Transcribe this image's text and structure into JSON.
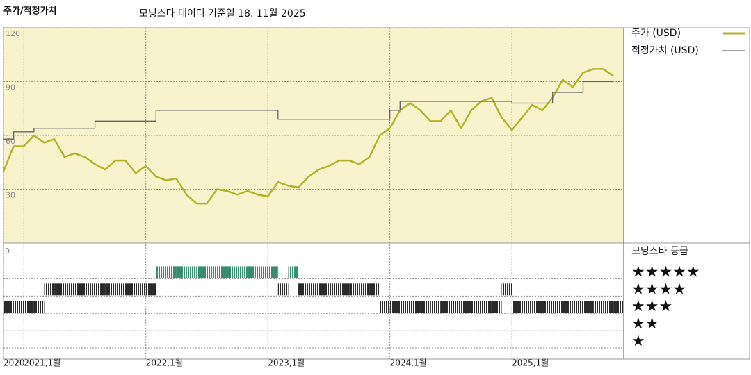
{
  "chart_data": [
    {
      "type": "line",
      "title": "주가/적정가치",
      "subtitle": "모닝스타 데이터 기준일 18. 11월 2025",
      "x": [
        "2020-11",
        "2020-12",
        "2021-01",
        "2021-02",
        "2021-03",
        "2021-04",
        "2021-05",
        "2021-06",
        "2021-07",
        "2021-08",
        "2021-09",
        "2021-10",
        "2021-11",
        "2021-12",
        "2022-01",
        "2022-02",
        "2022-03",
        "2022-04",
        "2022-05",
        "2022-06",
        "2022-07",
        "2022-08",
        "2022-09",
        "2022-10",
        "2022-11",
        "2022-12",
        "2023-01",
        "2023-02",
        "2023-03",
        "2023-04",
        "2023-05",
        "2023-06",
        "2023-07",
        "2023-08",
        "2023-09",
        "2023-10",
        "2023-11",
        "2023-12",
        "2024-01",
        "2024-02",
        "2024-03",
        "2024-04",
        "2024-05",
        "2024-06",
        "2024-07",
        "2024-08",
        "2024-09",
        "2024-10",
        "2024-11",
        "2024-12",
        "2025-01",
        "2025-02",
        "2025-03",
        "2025-04",
        "2025-05",
        "2025-06",
        "2025-07",
        "2025-08",
        "2025-09",
        "2025-10",
        "2025-11"
      ],
      "series": [
        {
          "name": "주가 (USD)",
          "color": "#b3b32b",
          "line_style": "solid",
          "values": [
            40,
            54,
            54,
            60,
            56,
            58,
            48,
            50,
            48,
            44,
            41,
            46,
            46,
            39,
            43,
            37,
            35,
            36,
            27,
            22,
            22,
            30,
            29,
            27,
            29,
            27,
            26,
            34,
            32,
            31,
            37,
            41,
            43,
            46,
            46,
            44,
            48,
            60,
            64,
            74,
            78,
            74,
            68,
            68,
            74,
            64,
            74,
            79,
            81,
            70,
            63,
            70,
            77,
            74,
            81,
            91,
            87,
            95,
            97,
            97,
            93
          ]
        },
        {
          "name": "적정가치 (USD)",
          "color": "#666666",
          "line_style": "step",
          "values": [
            58,
            62,
            62,
            64,
            64,
            64,
            64,
            64,
            64,
            68,
            68,
            68,
            68,
            68,
            68,
            74,
            74,
            74,
            74,
            74,
            74,
            74,
            74,
            74,
            74,
            74,
            74,
            69,
            69,
            69,
            69,
            69,
            69,
            69,
            69,
            69,
            69,
            69,
            74,
            79,
            79,
            79,
            79,
            79,
            79,
            79,
            79,
            79,
            79,
            79,
            78,
            78,
            78,
            78,
            84,
            84,
            84,
            90,
            90,
            90,
            90
          ]
        }
      ],
      "xlim": [
        "2020-11",
        "2025-12"
      ],
      "xticks": [
        {
          "value": "2020-11",
          "label": "2020"
        },
        {
          "value": "2021-01",
          "label": "2021,1월"
        },
        {
          "value": "2022-01",
          "label": "2022,1월"
        },
        {
          "value": "2023-01",
          "label": "2023,1월"
        },
        {
          "value": "2024-01",
          "label": "2024,1월"
        },
        {
          "value": "2025-01",
          "label": "2025,1월"
        }
      ],
      "ylim": [
        0,
        120
      ],
      "yticks": [
        30,
        60,
        90,
        120
      ],
      "grid": true,
      "background": "#f8f3cc"
    },
    {
      "type": "rating",
      "title": "모닝스타 등급",
      "y_axis_label": "0",
      "x": [
        "2020-11",
        "2020-12",
        "2021-01",
        "2021-02",
        "2021-03",
        "2021-04",
        "2021-05",
        "2021-06",
        "2021-07",
        "2021-08",
        "2021-09",
        "2021-10",
        "2021-11",
        "2021-12",
        "2022-01",
        "2022-02",
        "2022-03",
        "2022-04",
        "2022-05",
        "2022-06",
        "2022-07",
        "2022-08",
        "2022-09",
        "2022-10",
        "2022-11",
        "2022-12",
        "2023-01",
        "2023-02",
        "2023-03",
        "2023-04",
        "2023-05",
        "2023-06",
        "2023-07",
        "2023-08",
        "2023-09",
        "2023-10",
        "2023-11",
        "2023-12",
        "2024-01",
        "2024-02",
        "2024-03",
        "2024-04",
        "2024-05",
        "2024-06",
        "2024-07",
        "2024-08",
        "2024-09",
        "2024-10",
        "2024-11",
        "2024-12",
        "2025-01",
        "2025-02",
        "2025-03",
        "2025-04",
        "2025-05",
        "2025-06",
        "2025-07",
        "2025-08",
        "2025-09",
        "2025-10",
        "2025-11"
      ],
      "values": [
        3,
        3,
        3,
        3,
        4,
        4,
        4,
        4,
        4,
        4,
        4,
        4,
        4,
        4,
        4,
        5,
        5,
        5,
        5,
        5,
        5,
        5,
        5,
        5,
        5,
        5,
        5,
        4,
        5,
        4,
        4,
        4,
        4,
        4,
        4,
        4,
        4,
        3,
        3,
        3,
        3,
        3,
        3,
        3,
        3,
        3,
        3,
        3,
        3,
        4,
        3,
        3,
        3,
        3,
        3,
        3,
        3,
        3,
        3,
        3,
        3
      ],
      "xlim": [
        "2020-11",
        "2025-12"
      ],
      "ylim": [
        0,
        6.5
      ],
      "yticks": [
        {
          "value": 5,
          "label": "★★★★★"
        },
        {
          "value": 4,
          "label": "★★★★"
        },
        {
          "value": 3,
          "label": "★★★"
        },
        {
          "value": 2,
          "label": "★★"
        },
        {
          "value": 1,
          "label": "★"
        }
      ],
      "color": "#2b2b2b",
      "top_color": "#3a8c70",
      "grid": true
    }
  ]
}
